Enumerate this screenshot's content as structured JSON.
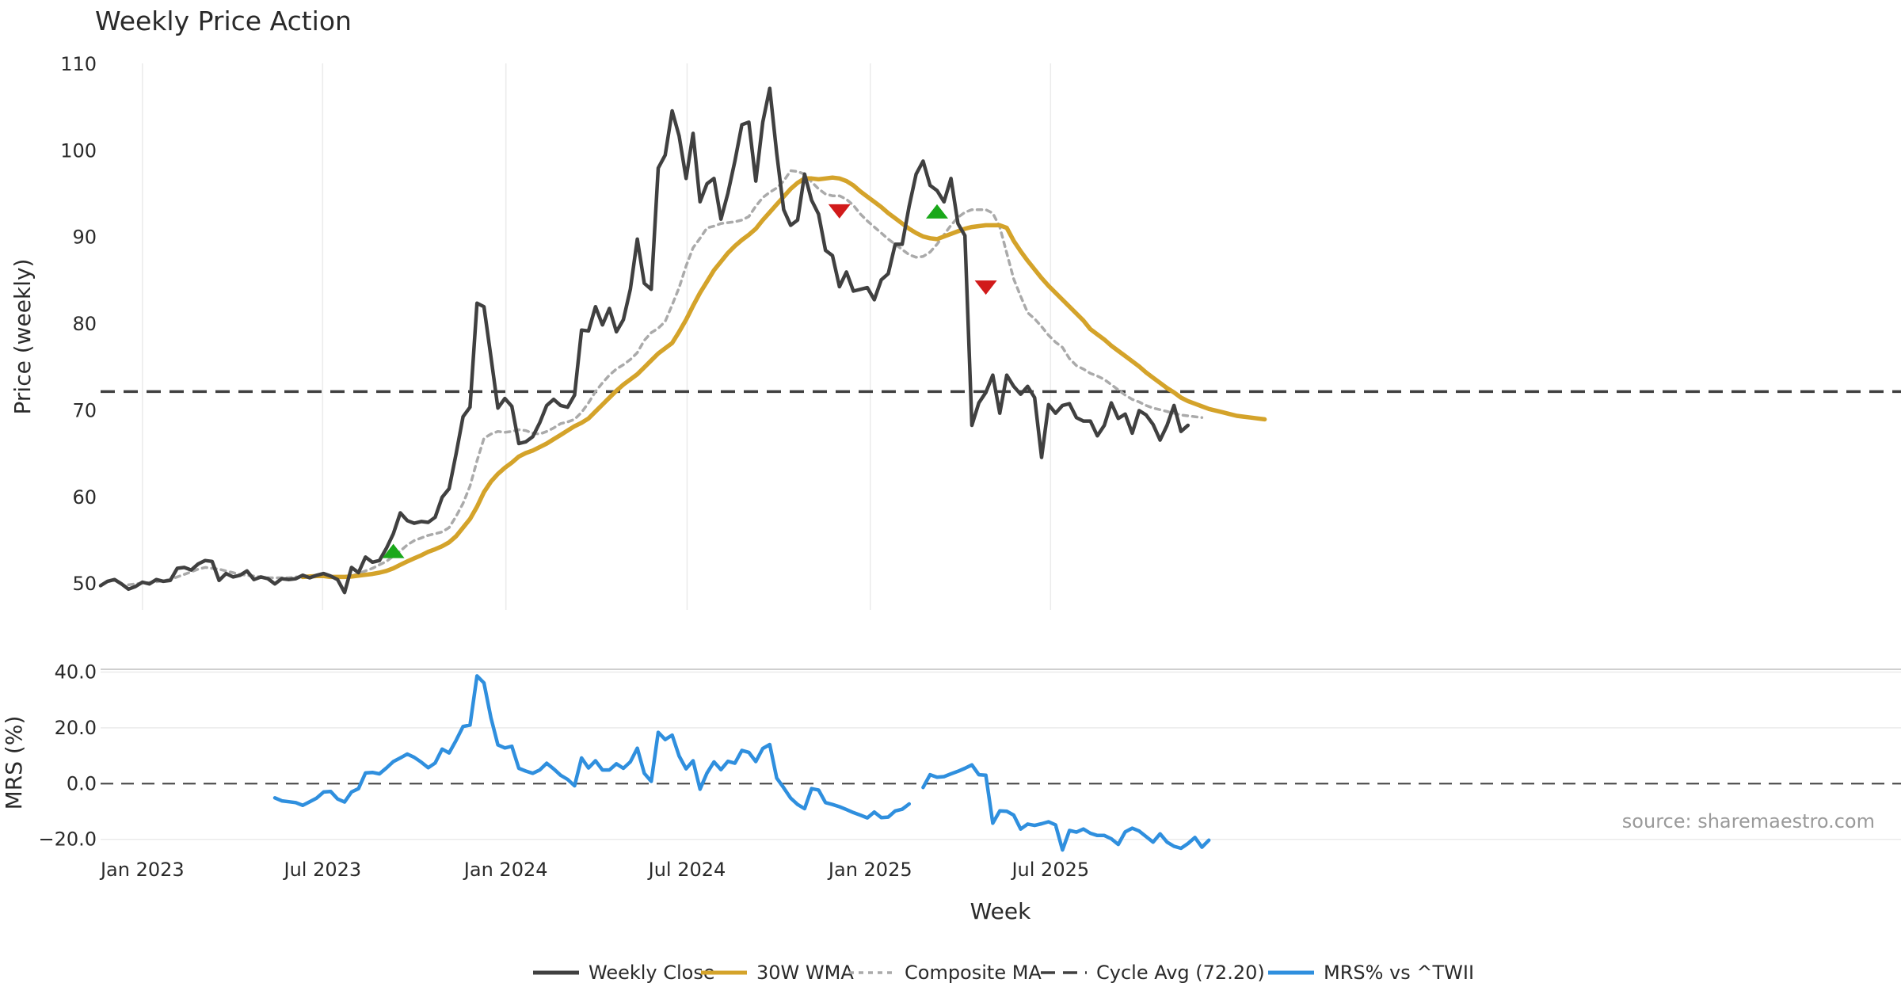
{
  "chart_data": [
    {
      "type": "line",
      "title": "Weekly Price Action",
      "xlabel": "",
      "ylabel": "Price (weekly)",
      "ylim": [
        47,
        111
      ],
      "yticks": [
        50,
        60,
        70,
        80,
        90,
        100,
        110
      ],
      "cycle_avg": 72.2,
      "x_start": "2022-11-20",
      "x_step_days": 7,
      "series": [
        {
          "name": "Weekly Close",
          "color": "#404040",
          "values": [
            49.8,
            50.3,
            50.5,
            50.0,
            49.4,
            49.7,
            50.2,
            50.0,
            50.5,
            50.3,
            50.4,
            51.8,
            51.9,
            51.6,
            52.3,
            52.7,
            52.6,
            50.4,
            51.2,
            50.8,
            51.0,
            51.5,
            50.5,
            50.8,
            50.6,
            50.0,
            50.6,
            50.5,
            50.6,
            51.0,
            50.7,
            51.0,
            51.2,
            50.9,
            50.5,
            49.0,
            51.9,
            51.3,
            53.1,
            52.5,
            52.7,
            54.1,
            55.8,
            58.2,
            57.3,
            57.0,
            57.2,
            57.1,
            57.7,
            60.0,
            61.0,
            65.0,
            69.3,
            70.4,
            82.4,
            82.0,
            76.2,
            70.3,
            71.4,
            70.5,
            66.2,
            66.4,
            67.0,
            68.6,
            70.6,
            71.3,
            70.6,
            70.4,
            71.8,
            79.3,
            79.2,
            82.0,
            79.9,
            81.8,
            79.1,
            80.5,
            84.0,
            89.8,
            84.7,
            84.0,
            98.0,
            99.5,
            104.6,
            101.7,
            96.8,
            102.0,
            94.1,
            96.2,
            96.8,
            92.1,
            95.1,
            98.8,
            103.0,
            103.3,
            96.5,
            103.3,
            107.2,
            99.7,
            93.2,
            91.4,
            92.0,
            97.3,
            94.3,
            92.7,
            88.5,
            87.9,
            84.3,
            86.0,
            83.8,
            84.0,
            84.2,
            82.8,
            85.1,
            85.8,
            89.2,
            89.2,
            93.6,
            97.3,
            98.8,
            96.0,
            95.4,
            94.1,
            96.8,
            91.6,
            90.2,
            68.3,
            70.9,
            72.1,
            74.1,
            69.7,
            74.1,
            72.8,
            71.9,
            72.8,
            71.5,
            64.6,
            70.7,
            69.7,
            70.6,
            70.8,
            69.2,
            68.8,
            68.8,
            67.1,
            68.3,
            70.9,
            69.1,
            69.6,
            67.4,
            70.0,
            69.5,
            68.4,
            66.6,
            68.3,
            70.6,
            67.6,
            68.3
          ]
        },
        {
          "name": "30W WMA",
          "color": "#d4a32a",
          "start_index": 29,
          "values": [
            50.8,
            50.85,
            50.9,
            50.9,
            50.8,
            50.8,
            50.8,
            50.85,
            50.95,
            51.05,
            51.15,
            51.3,
            51.5,
            51.8,
            52.2,
            52.6,
            52.95,
            53.3,
            53.7,
            54.0,
            54.35,
            54.8,
            55.5,
            56.5,
            57.5,
            58.9,
            60.6,
            61.8,
            62.7,
            63.4,
            64.0,
            64.7,
            65.1,
            65.4,
            65.8,
            66.2,
            66.7,
            67.2,
            67.7,
            68.2,
            68.6,
            69.1,
            69.9,
            70.7,
            71.5,
            72.3,
            73.0,
            73.6,
            74.2,
            75.0,
            75.8,
            76.6,
            77.2,
            77.8,
            79.1,
            80.5,
            82.1,
            83.6,
            84.9,
            86.2,
            87.2,
            88.2,
            89.0,
            89.7,
            90.3,
            91.0,
            92.0,
            92.9,
            93.8,
            94.7,
            95.6,
            96.3,
            96.8,
            96.8,
            96.7,
            96.8,
            96.9,
            96.8,
            96.5,
            96.0,
            95.3,
            94.7,
            94.1,
            93.5,
            92.8,
            92.2,
            91.6,
            91.0,
            90.5,
            90.1,
            89.9,
            89.8,
            90.1,
            90.4,
            90.7,
            91.0,
            91.2,
            91.3,
            91.4,
            91.4,
            91.4,
            91.1,
            89.6,
            88.4,
            87.3,
            86.3,
            85.3,
            84.4,
            83.6,
            82.8,
            82.0,
            81.2,
            80.4,
            79.4,
            78.8,
            78.2,
            77.5,
            76.9,
            76.3,
            75.7,
            75.1,
            74.4,
            73.8,
            73.2,
            72.6,
            72.1,
            71.5,
            71.1,
            70.8,
            70.5,
            70.2,
            70.0,
            69.8,
            69.6,
            69.4,
            69.3,
            69.2,
            69.1,
            69.0
          ]
        },
        {
          "name": "Composite MA",
          "color": "#aaaaaa",
          "start_index": 4,
          "values": [
            49.9,
            50.0,
            50.1,
            50.15,
            50.25,
            50.35,
            50.55,
            50.8,
            51.1,
            51.4,
            51.7,
            51.9,
            51.8,
            51.7,
            51.5,
            51.3,
            51.1,
            51.0,
            50.9,
            50.8,
            50.7,
            50.7,
            50.7,
            50.7,
            50.8,
            50.8,
            50.9,
            51.0,
            51.0,
            50.9,
            50.8,
            50.8,
            50.9,
            51.2,
            51.5,
            51.8,
            52.2,
            52.6,
            53.2,
            53.8,
            54.5,
            55.0,
            55.3,
            55.6,
            55.8,
            56.0,
            56.5,
            57.8,
            59.3,
            61.3,
            64.2,
            66.8,
            67.3,
            67.6,
            67.5,
            67.6,
            67.8,
            67.7,
            67.4,
            67.3,
            67.6,
            68.0,
            68.5,
            68.7,
            69.0,
            69.8,
            70.9,
            72.2,
            73.2,
            74.1,
            74.8,
            75.3,
            75.9,
            76.7,
            78.1,
            79.0,
            79.5,
            80.3,
            82.2,
            84.2,
            86.7,
            88.8,
            89.9,
            91.1,
            91.3,
            91.6,
            91.7,
            91.8,
            92.0,
            92.4,
            93.6,
            94.6,
            95.2,
            95.7,
            96.5,
            97.7,
            97.6,
            97.3,
            96.4,
            95.6,
            95.0,
            94.8,
            94.8,
            94.4,
            93.7,
            92.7,
            91.9,
            91.2,
            90.5,
            89.8,
            89.2,
            88.6,
            88.0,
            87.7,
            87.8,
            88.3,
            89.2,
            90.3,
            91.4,
            92.3,
            92.9,
            93.2,
            93.2,
            93.2,
            92.8,
            91.2,
            88.2,
            85.2,
            83.2,
            81.3,
            80.6,
            79.7,
            78.7,
            77.9,
            77.3,
            76.0,
            75.2,
            74.8,
            74.3,
            74.0,
            73.6,
            73.0,
            72.4,
            71.8,
            71.3,
            71.0,
            70.6,
            70.3,
            70.1,
            69.9,
            69.7,
            69.5,
            69.4,
            69.3,
            69.2
          ]
        }
      ],
      "signals": [
        {
          "type": "buy",
          "index": 42,
          "value": 53.8,
          "color": "#1aa81a"
        },
        {
          "type": "sell",
          "index": 106,
          "value": 93.0,
          "color": "#d11a1a"
        },
        {
          "type": "buy",
          "index": 120,
          "value": 93.0,
          "color": "#1aa81a"
        },
        {
          "type": "sell",
          "index": 127,
          "value": 84.2,
          "color": "#d11a1a"
        }
      ]
    },
    {
      "type": "line",
      "title": "",
      "xlabel": "Week",
      "ylabel": "MRS (%)",
      "ylim": [
        -21.5,
        41
      ],
      "yticks": [
        {
          "value": -20,
          "label": "−20.0"
        },
        {
          "value": 0,
          "label": "0.0"
        },
        {
          "value": 20,
          "label": "20.0"
        },
        {
          "value": 40,
          "label": "40.0"
        }
      ],
      "x_start": "2022-11-20",
      "x_step_days": 7,
      "x_ticks": [
        "Jan 2023",
        "Jul 2023",
        "Jan 2024",
        "Jul 2024",
        "Jan 2025",
        "Jul 2025"
      ],
      "zero_line": 0,
      "series": [
        {
          "name": "MRS% vs ^TWII",
          "color": "#2f8fde",
          "start_index": 25,
          "values": [
            -5.1,
            -6.2,
            -6.5,
            -6.8,
            -7.8,
            -6.5,
            -5.2,
            -3.0,
            -2.8,
            -5.5,
            -6.6,
            -3.0,
            -1.8,
            3.8,
            4.0,
            3.5,
            5.6,
            7.9,
            9.2,
            10.6,
            9.4,
            7.7,
            5.7,
            7.4,
            12.4,
            11.0,
            15.5,
            20.5,
            21.0,
            38.6,
            36.1,
            23.6,
            13.9,
            12.8,
            13.4,
            5.5,
            4.5,
            3.7,
            4.9,
            7.3,
            5.3,
            3.0,
            1.5,
            -0.8,
            9.2,
            5.6,
            8.2,
            4.9,
            4.9,
            7.1,
            5.5,
            7.8,
            12.7,
            3.7,
            0.8,
            18.4,
            15.8,
            17.4,
            9.9,
            5.3,
            8.2,
            -2.0,
            3.8,
            7.8,
            5.0,
            8.0,
            7.3,
            11.9,
            11.2,
            7.9,
            12.6,
            14.0,
            2.0,
            -1.5,
            -5.2,
            -7.5,
            -9.0,
            -1.8,
            -2.3,
            -6.8,
            -7.5,
            -8.3,
            -9.3,
            -10.4,
            -11.3,
            -12.3,
            -10.2,
            -12.2,
            -12.0,
            -9.8,
            -9.2,
            -7.3,
            null,
            -1.4,
            3.2,
            2.3,
            2.5,
            3.5,
            4.4,
            5.5,
            6.7,
            3.2,
            3.0,
            -14.2,
            -9.8,
            -9.9,
            -11.3,
            -16.3,
            -14.5,
            -15.0,
            -14.4,
            -13.7,
            -14.8,
            -23.8,
            -16.8,
            -17.4,
            -16.3,
            -17.8,
            -18.6,
            -18.6,
            -19.8,
            -21.8,
            -17.3,
            -16.0,
            -17.0,
            -19.0,
            -21.0,
            -18.0,
            -21.0,
            -22.5,
            -23.2,
            -21.5,
            -19.3,
            -22.8,
            -20.3
          ]
        }
      ],
      "source_text": "source: sharemaestro.com"
    }
  ],
  "legend": [
    {
      "label": "Weekly Close",
      "color": "#404040",
      "style": "solid"
    },
    {
      "label": "30W WMA",
      "color": "#d4a32a",
      "style": "solid"
    },
    {
      "label": "Composite MA",
      "color": "#aaaaaa",
      "style": "dotted"
    },
    {
      "label": "Cycle Avg (72.20)",
      "color": "#404040",
      "style": "dashed"
    },
    {
      "label": "MRS% vs ^TWII",
      "color": "#2f8fde",
      "style": "solid"
    }
  ]
}
